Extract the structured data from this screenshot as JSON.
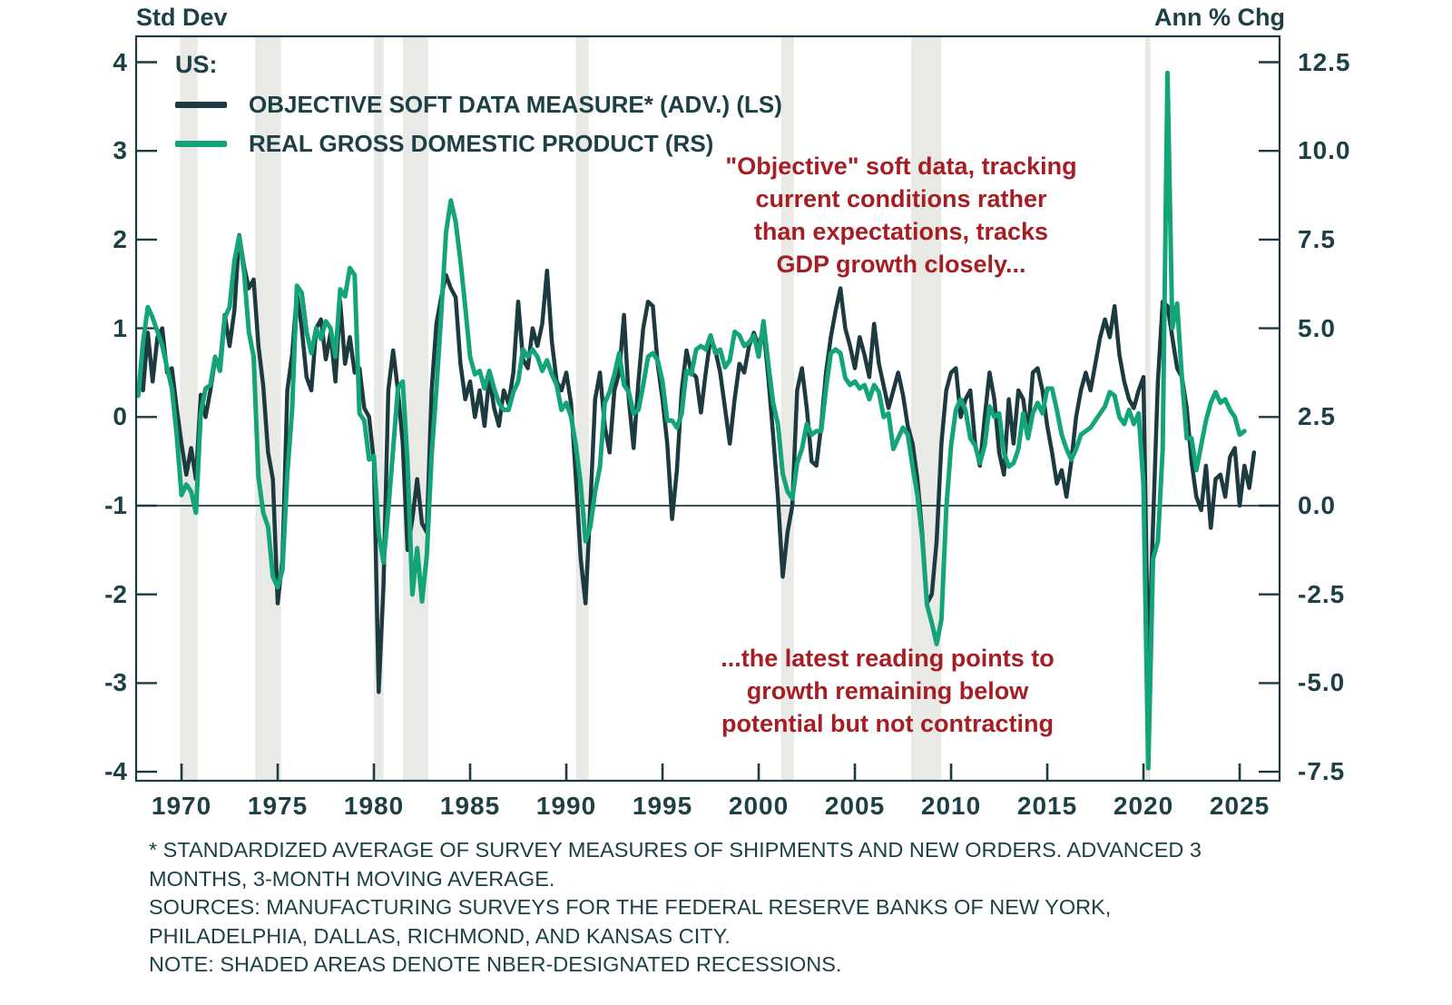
{
  "chart_data": {
    "type": "line",
    "left_axis": {
      "title": "Std Dev",
      "tick_labels": [
        "4",
        "3",
        "2",
        "1",
        "0",
        "-1",
        "-2",
        "-3",
        "-4"
      ]
    },
    "right_axis": {
      "title": "Ann % Chg",
      "tick_labels": [
        "12.5",
        "10.0",
        "7.5",
        "5.0",
        "2.5",
        "0.0",
        "-2.5",
        "-5.0",
        "-7.5"
      ]
    },
    "x_tick_labels": [
      "1970",
      "1975",
      "1980",
      "1985",
      "1990",
      "1995",
      "2000",
      "2005",
      "2010",
      "2015",
      "2020",
      "2025"
    ],
    "zero_line_right_value": 0.0,
    "recession_bands_years": [
      [
        1969.92,
        1970.83
      ],
      [
        1973.83,
        1975.17
      ],
      [
        1980.0,
        1980.5
      ],
      [
        1981.5,
        1982.83
      ],
      [
        1990.5,
        1991.17
      ],
      [
        2001.17,
        2001.83
      ],
      [
        2007.92,
        2009.5
      ],
      [
        2020.08,
        2020.33
      ]
    ],
    "recession_band_color": "#e9e9e5",
    "grid": "off",
    "legend_position": "top-left-inside",
    "series": [
      {
        "name": "OBJECTIVE SOFT DATA MEASURE* (ADV.) (LS)",
        "axis": "left",
        "unit": "std dev",
        "color": "#1d3a41",
        "x_start": 1967.75,
        "x_step": 0.25,
        "values": [
          null,
          0.3,
          0.95,
          0.4,
          0.9,
          1.0,
          0.5,
          0.55,
          0.1,
          -0.3,
          -0.65,
          -0.35,
          -0.7,
          0.25,
          0.0,
          0.3,
          0.65,
          0.6,
          1.15,
          0.8,
          1.2,
          2.05,
          1.7,
          1.45,
          1.55,
          0.8,
          0.35,
          -0.4,
          -0.7,
          -2.1,
          -1.6,
          0.3,
          0.7,
          1.4,
          1.0,
          0.45,
          0.3,
          1.0,
          1.1,
          0.65,
          0.95,
          0.4,
          1.3,
          0.6,
          0.9,
          0.5,
          0.55,
          0.1,
          0.0,
          -0.5,
          -3.1,
          -1.9,
          0.3,
          0.75,
          0.3,
          -0.3,
          -1.5,
          -1.15,
          -0.7,
          -1.2,
          -1.3,
          0.3,
          1.05,
          1.35,
          1.6,
          1.45,
          1.35,
          0.6,
          0.2,
          0.4,
          0.0,
          0.3,
          -0.1,
          0.45,
          0.1,
          -0.1,
          0.3,
          0.15,
          0.5,
          1.3,
          0.65,
          0.55,
          1.0,
          0.8,
          1.05,
          1.65,
          0.85,
          0.4,
          0.3,
          0.5,
          0.15,
          -0.7,
          -1.6,
          -2.1,
          -1.0,
          0.2,
          0.5,
          -0.1,
          -0.4,
          0.3,
          0.5,
          1.15,
          0.2,
          -0.35,
          0.4,
          1.0,
          1.3,
          1.25,
          0.6,
          0.2,
          -0.3,
          -1.15,
          -0.6,
          0.3,
          0.75,
          0.5,
          0.45,
          0.05,
          0.5,
          0.9,
          0.75,
          0.5,
          0.1,
          -0.3,
          0.2,
          0.6,
          0.5,
          0.8,
          0.95,
          0.8,
          1.0,
          0.45,
          -0.2,
          -0.9,
          -1.8,
          -1.3,
          -1.0,
          0.3,
          0.55,
          0.1,
          -0.5,
          -0.55,
          -0.1,
          0.5,
          0.9,
          1.2,
          1.45,
          1.0,
          0.8,
          0.55,
          0.9,
          0.7,
          0.45,
          1.05,
          0.6,
          0.35,
          0.1,
          0.3,
          0.5,
          0.25,
          -0.1,
          -0.3,
          -0.7,
          -1.3,
          -2.1,
          -2.0,
          -1.4,
          -0.3,
          0.3,
          0.5,
          0.55,
          0.0,
          0.2,
          0.3,
          -0.3,
          -0.55,
          0.0,
          0.5,
          0.2,
          -0.4,
          -0.65,
          0.2,
          -0.3,
          0.3,
          0.2,
          -0.2,
          0.5,
          0.55,
          0.3,
          -0.1,
          -0.4,
          -0.75,
          -0.6,
          -0.9,
          -0.5,
          0.0,
          0.3,
          0.5,
          0.3,
          0.6,
          0.9,
          1.1,
          0.9,
          1.25,
          0.7,
          0.4,
          0.2,
          0.1,
          0.3,
          0.45,
          -2.9,
          -1.2,
          0.4,
          1.3,
          1.25,
          0.9,
          0.55,
          0.45,
          0.1,
          -0.5,
          -0.9,
          -1.05,
          -0.55,
          -1.25,
          -0.7,
          -0.65,
          -0.9,
          -0.45,
          -0.35,
          -1.0,
          -0.55,
          -0.8,
          -0.4
        ]
      },
      {
        "name": "REAL GROSS DOMESTIC PRODUCT (RS)",
        "axis": "right",
        "unit": "ann % chg",
        "color": "#14a47a",
        "x_start": 1967.75,
        "x_step": 0.25,
        "values": [
          3.1,
          4.6,
          5.6,
          5.3,
          4.9,
          4.5,
          3.9,
          3.3,
          2.0,
          0.3,
          0.6,
          0.4,
          -0.2,
          2.6,
          3.3,
          3.4,
          4.2,
          3.8,
          5.3,
          5.6,
          6.9,
          7.6,
          6.6,
          4.9,
          4.2,
          0.8,
          -0.2,
          -0.6,
          -2.0,
          -2.3,
          -1.8,
          0.9,
          2.7,
          6.2,
          6.0,
          4.9,
          4.3,
          5.0,
          4.7,
          5.2,
          5.0,
          4.2,
          6.1,
          5.9,
          6.7,
          6.5,
          2.6,
          2.4,
          1.3,
          1.4,
          -0.8,
          -1.6,
          -0.1,
          1.6,
          3.3,
          3.5,
          1.2,
          -2.5,
          -1.2,
          -2.7,
          -1.4,
          1.4,
          3.3,
          5.4,
          7.7,
          8.6,
          8.0,
          6.9,
          5.6,
          4.2,
          3.7,
          3.8,
          3.3,
          3.8,
          3.3,
          2.9,
          2.7,
          2.7,
          3.2,
          3.5,
          4.4,
          4.2,
          4.4,
          4.2,
          3.8,
          4.1,
          3.7,
          3.4,
          2.7,
          2.9,
          2.5,
          1.7,
          0.6,
          -1.0,
          -0.6,
          0.4,
          1.1,
          2.9,
          3.2,
          3.7,
          4.3,
          3.4,
          3.2,
          2.6,
          2.7,
          3.4,
          4.2,
          4.3,
          4.1,
          3.5,
          2.4,
          2.4,
          2.2,
          2.6,
          3.8,
          3.7,
          4.4,
          4.5,
          4.4,
          4.8,
          4.3,
          4.4,
          3.9,
          4.1,
          4.9,
          4.8,
          4.5,
          4.6,
          4.8,
          4.2,
          5.2,
          4.0,
          2.9,
          2.3,
          0.9,
          0.4,
          0.2,
          1.2,
          1.6,
          2.3,
          2.0,
          2.1,
          2.1,
          3.3,
          4.3,
          4.4,
          4.3,
          3.6,
          3.4,
          3.5,
          3.3,
          3.4,
          3.0,
          3.4,
          3.2,
          2.5,
          2.6,
          1.6,
          1.9,
          2.2,
          2.0,
          1.1,
          0.3,
          -0.9,
          -2.8,
          -3.3,
          -3.9,
          -3.2,
          -0.1,
          1.7,
          2.7,
          3.0,
          2.7,
          1.9,
          1.7,
          1.2,
          1.7,
          2.8,
          2.5,
          2.6,
          1.5,
          1.1,
          1.2,
          1.6,
          2.6,
          1.9,
          2.6,
          2.9,
          2.6,
          3.3,
          3.3,
          2.7,
          2.0,
          1.6,
          1.3,
          1.6,
          2.0,
          2.1,
          2.2,
          2.4,
          2.6,
          2.8,
          3.2,
          3.1,
          2.5,
          2.3,
          2.7,
          2.3,
          2.6,
          0.6,
          -7.4,
          -1.5,
          -1.0,
          1.6,
          12.2,
          5.0,
          5.7,
          3.6,
          1.9,
          1.9,
          1.0,
          1.7,
          2.4,
          2.9,
          3.2,
          2.9,
          3.0,
          2.7,
          2.5,
          2.0,
          2.1
        ]
      }
    ]
  },
  "legend": {
    "region_label": "US:",
    "items": [
      {
        "label": "OBJECTIVE SOFT DATA MEASURE* (ADV.) (LS)",
        "color": "#1d3a41"
      },
      {
        "label": "REAL GROSS DOMESTIC PRODUCT (RS)",
        "color": "#14a47a"
      }
    ]
  },
  "annotations": {
    "upper": {
      "text": "\"Objective\" soft data, tracking\ncurrent conditions rather\nthan expectations, tracks\nGDP growth closely...",
      "color": "#a41e24"
    },
    "lower": {
      "text": "...the latest reading points to\ngrowth remaining below\npotential but not contracting",
      "color": "#a41e24"
    }
  },
  "footnotes": {
    "text": "* STANDARDIZED AVERAGE OF SURVEY MEASURES OF SHIPMENTS AND NEW ORDERS. ADVANCED 3\nMONTHS, 3-MONTH MOVING AVERAGE.\nSOURCES: MANUFACTURING SURVEYS FOR THE FEDERAL RESERVE BANKS OF NEW YORK,\nPHILADELPHIA, DALLAS, RICHMOND, AND KANSAS CITY.\nNOTE: SHADED AREAS DENOTE NBER-DESIGNATED RECESSIONS."
  },
  "colors": {
    "text": "#1d4046",
    "plot_border": "#1d3a41",
    "annotation_red": "#a41e24",
    "recession_band": "#e9e9e5",
    "background": "#ffffff"
  }
}
